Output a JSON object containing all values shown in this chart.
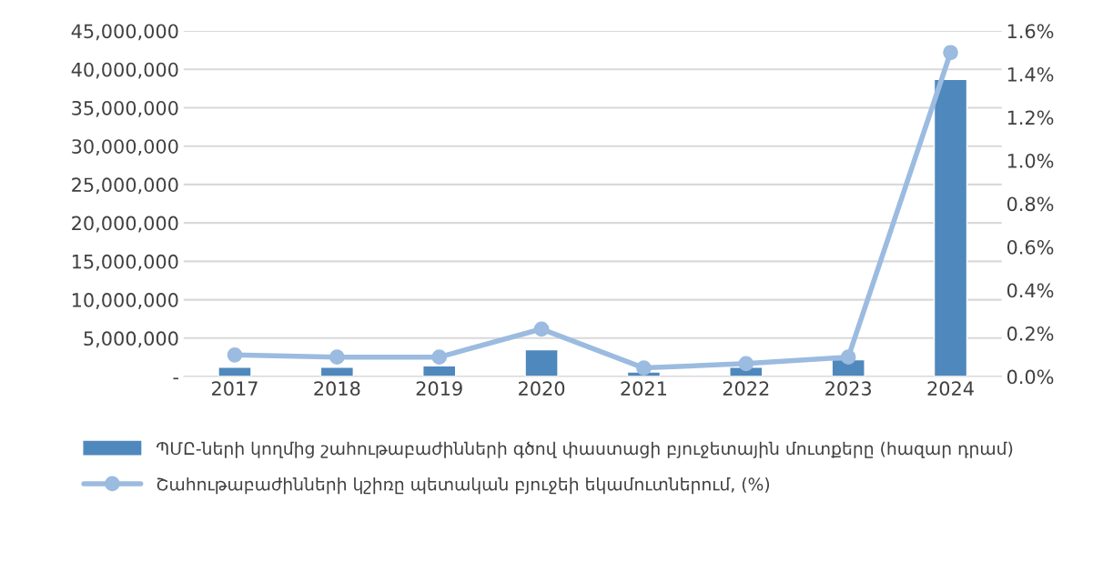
{
  "chart_data": {
    "type": "bar",
    "categories": [
      "2017",
      "2018",
      "2019",
      "2020",
      "2021",
      "2022",
      "2023",
      "2024"
    ],
    "series": [
      {
        "name": "ՊՄԸ-ների կողմից շահութաբաժինների գծով փաստացի բյուջետային մուտքերը (հազար դրամ)",
        "color": "#4f88bd",
        "values": [
          1200000,
          1200000,
          1400000,
          3500000,
          600000,
          1200000,
          2200000,
          38700000
        ]
      },
      {
        "name": "Շահութաբաժինների կշիռը պետական բյուջեի եկամուտներում, (%)",
        "type": "line",
        "axis": "y2",
        "color": "#9bbbe0",
        "marker": "circle",
        "values": [
          0.1,
          0.09,
          0.09,
          0.22,
          0.04,
          0.06,
          0.09,
          1.5
        ]
      }
    ],
    "ylim": [
      0,
      45000000
    ],
    "yticks": [
      {
        "value": 0,
        "label": "-"
      },
      {
        "value": 5000000,
        "label": "5,000,000"
      },
      {
        "value": 10000000,
        "label": "10,000,000"
      },
      {
        "value": 15000000,
        "label": "15,000,000"
      },
      {
        "value": 20000000,
        "label": "20,000,000"
      },
      {
        "value": 25000000,
        "label": "25,000,000"
      },
      {
        "value": 30000000,
        "label": "30,000,000"
      },
      {
        "value": 35000000,
        "label": "35,000,000"
      },
      {
        "value": 40000000,
        "label": "40,000,000"
      },
      {
        "value": 45000000,
        "label": "45,000,000"
      }
    ],
    "y2lim": [
      0,
      1.6
    ],
    "y2ticks": [
      {
        "value": 0,
        "label": "0.0%"
      },
      {
        "value": 0.2,
        "label": "0.2%"
      },
      {
        "value": 0.4,
        "label": "0.4%"
      },
      {
        "value": 0.6,
        "label": "0.6%"
      },
      {
        "value": 0.8,
        "label": "0.8%"
      },
      {
        "value": 1.0,
        "label": "1.0%"
      },
      {
        "value": 1.2,
        "label": "1.2%"
      },
      {
        "value": 1.4,
        "label": "1.4%"
      },
      {
        "value": 1.6,
        "label": "1.6%"
      }
    ],
    "grid": "y",
    "legend": "bottom"
  }
}
